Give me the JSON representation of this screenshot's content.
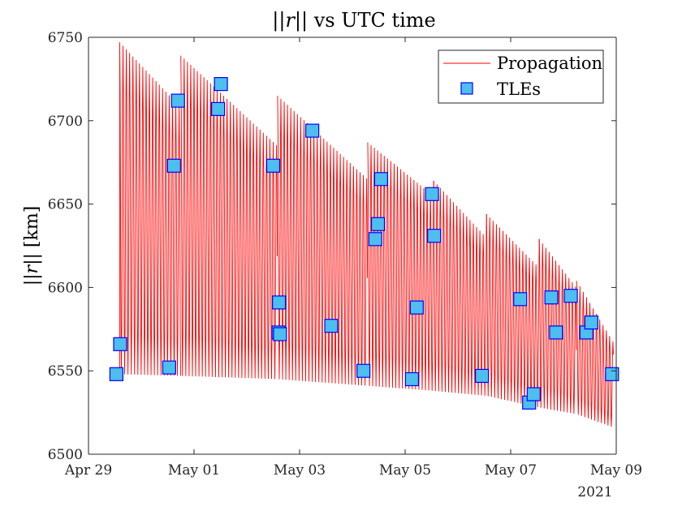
{
  "chart_data": {
    "type": "line",
    "title_parts": [
      "||",
      "r",
      "|| vs UTC time"
    ],
    "ylabel_parts": [
      "||",
      "r",
      "|| [km]"
    ],
    "xlabel": "",
    "year_label": "2021",
    "ylim": [
      6500,
      6750
    ],
    "yticks": [
      6500,
      6550,
      6600,
      6650,
      6700,
      6750
    ],
    "ytick_labels": [
      "6500",
      "6550",
      "6600",
      "6650",
      "6700",
      "6750"
    ],
    "xlim": [
      "2021-04-29",
      "2021-05-09"
    ],
    "xticks": [
      "2021-04-29",
      "2021-05-01",
      "2021-05-03",
      "2021-05-05",
      "2021-05-07",
      "2021-05-09"
    ],
    "xtick_labels": [
      "Apr 29",
      "May 01",
      "May 03",
      "May 05",
      "May 07",
      "May 09"
    ],
    "grid": false,
    "legend_position": "top-right",
    "series": [
      {
        "name": "Propagation",
        "style": "line",
        "color": "#ff0000",
        "start": "2021-04-29 14:12",
        "end": "2021-05-08 22:48",
        "orbit_period_hours": 1.5,
        "resets": [
          "2021-04-29 14:12",
          "2021-04-30 18:00",
          "2021-05-02 14:00",
          "2021-05-04 07:00",
          "2021-05-05 13:00",
          "2021-05-06 13:00",
          "2021-05-07 13:00",
          "2021-05-08 06:00"
        ],
        "apogee_envelope": [
          {
            "x": "2021-04-29 14:12",
            "y": 6747
          },
          {
            "x": "2021-04-30 17:50",
            "y": 6708
          },
          {
            "x": "2021-04-30 18:00",
            "y": 6739
          },
          {
            "x": "2021-05-02 13:50",
            "y": 6685
          },
          {
            "x": "2021-05-02 14:00",
            "y": 6715
          },
          {
            "x": "2021-05-04 06:50",
            "y": 6665
          },
          {
            "x": "2021-05-04 07:00",
            "y": 6687
          },
          {
            "x": "2021-05-05 12:50",
            "y": 6655
          },
          {
            "x": "2021-05-05 13:00",
            "y": 6664
          },
          {
            "x": "2021-05-06 12:50",
            "y": 6630
          },
          {
            "x": "2021-05-06 13:00",
            "y": 6644
          },
          {
            "x": "2021-05-07 12:50",
            "y": 6612
          },
          {
            "x": "2021-05-07 13:00",
            "y": 6629
          },
          {
            "x": "2021-05-08 05:50",
            "y": 6600
          },
          {
            "x": "2021-05-08 06:00",
            "y": 6604
          },
          {
            "x": "2021-05-08 22:48",
            "y": 6567
          }
        ],
        "perigee_envelope": [
          {
            "x": "2021-04-29 14:12",
            "y": 6548
          },
          {
            "x": "2021-04-30 18:00",
            "y": 6547
          },
          {
            "x": "2021-05-02 14:00",
            "y": 6545
          },
          {
            "x": "2021-05-04 07:00",
            "y": 6541
          },
          {
            "x": "2021-05-05 13:00",
            "y": 6538
          },
          {
            "x": "2021-05-06 13:00",
            "y": 6535
          },
          {
            "x": "2021-05-07 13:00",
            "y": 6528
          },
          {
            "x": "2021-05-08 06:00",
            "y": 6524
          },
          {
            "x": "2021-05-08 22:48",
            "y": 6516
          }
        ]
      },
      {
        "name": "TLEs",
        "style": "marker-square",
        "color": "#4dbeee",
        "edge_color": "#0000ff",
        "points": [
          {
            "x": "2021-04-29 12:43",
            "y": 6548
          },
          {
            "x": "2021-04-29 14:24",
            "y": 6566
          },
          {
            "x": "2021-04-30 12:43",
            "y": 6552
          },
          {
            "x": "2021-04-30 14:52",
            "y": 6673
          },
          {
            "x": "2021-04-30 16:41",
            "y": 6712
          },
          {
            "x": "2021-05-01 10:55",
            "y": 6707
          },
          {
            "x": "2021-05-01 12:14",
            "y": 6722
          },
          {
            "x": "2021-05-02 12:00",
            "y": 6673
          },
          {
            "x": "2021-05-02 14:38",
            "y": 6591
          },
          {
            "x": "2021-05-02 14:24",
            "y": 6573
          },
          {
            "x": "2021-05-02 15:07",
            "y": 6572
          },
          {
            "x": "2021-05-03 05:46",
            "y": 6694
          },
          {
            "x": "2021-05-03 14:24",
            "y": 6577
          },
          {
            "x": "2021-05-04 05:02",
            "y": 6550
          },
          {
            "x": "2021-05-04 10:26",
            "y": 6629
          },
          {
            "x": "2021-05-04 11:38",
            "y": 6638
          },
          {
            "x": "2021-05-04 13:05",
            "y": 6665
          },
          {
            "x": "2021-05-05 03:07",
            "y": 6545
          },
          {
            "x": "2021-05-05 05:17",
            "y": 6588
          },
          {
            "x": "2021-05-05 12:14",
            "y": 6656
          },
          {
            "x": "2021-05-05 13:12",
            "y": 6631
          },
          {
            "x": "2021-05-06 10:55",
            "y": 6547
          },
          {
            "x": "2021-05-07 04:19",
            "y": 6593
          },
          {
            "x": "2021-05-07 08:24",
            "y": 6531
          },
          {
            "x": "2021-05-07 10:26",
            "y": 6536
          },
          {
            "x": "2021-05-07 18:29",
            "y": 6594
          },
          {
            "x": "2021-05-07 20:38",
            "y": 6573
          },
          {
            "x": "2021-05-08 03:22",
            "y": 6595
          },
          {
            "x": "2021-05-08 10:26",
            "y": 6573
          },
          {
            "x": "2021-05-08 12:43",
            "y": 6579
          },
          {
            "x": "2021-05-08 22:05",
            "y": 6548
          }
        ]
      }
    ]
  }
}
